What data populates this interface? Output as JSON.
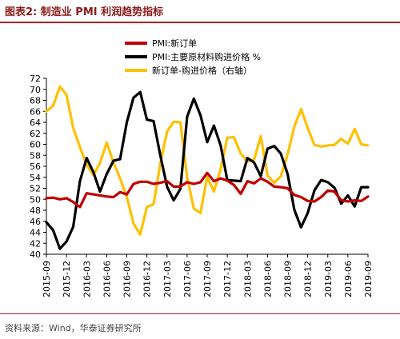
{
  "title": "图表2:  制造业 PMI 利润趋势指标",
  "source": "资料来源：Wind，华泰证券研究所",
  "chart_data": {
    "type": "line",
    "title": "",
    "xlabel": "",
    "ylabel": "",
    "ylim": [
      40,
      72
    ],
    "yticks": [
      40,
      42,
      44,
      46,
      48,
      50,
      52,
      54,
      56,
      58,
      60,
      62,
      64,
      66,
      68,
      70,
      72
    ],
    "x_tick_labels": [
      "2015-09",
      "2015-12",
      "2016-03",
      "2016-06",
      "2016-09",
      "2016-12",
      "2017-03",
      "2017-06",
      "2017-09",
      "2017-12",
      "2018-03",
      "2018-06",
      "2018-09",
      "2018-12",
      "2019-03",
      "2019-06",
      "2019-09"
    ],
    "x": [
      "2015-09",
      "2015-10",
      "2015-11",
      "2015-12",
      "2016-01",
      "2016-02",
      "2016-03",
      "2016-04",
      "2016-05",
      "2016-06",
      "2016-07",
      "2016-08",
      "2016-09",
      "2016-10",
      "2016-11",
      "2016-12",
      "2017-01",
      "2017-02",
      "2017-03",
      "2017-04",
      "2017-05",
      "2017-06",
      "2017-07",
      "2017-08",
      "2017-09",
      "2017-10",
      "2017-11",
      "2017-12",
      "2018-01",
      "2018-02",
      "2018-03",
      "2018-04",
      "2018-05",
      "2018-06",
      "2018-07",
      "2018-08",
      "2018-09",
      "2018-10",
      "2018-11",
      "2018-12",
      "2019-01",
      "2019-02",
      "2019-03",
      "2019-04",
      "2019-05",
      "2019-06",
      "2019-07",
      "2019-08",
      "2019-09"
    ],
    "legend_position": "top-left",
    "series": [
      {
        "name": "PMI:新订单",
        "color": "#c00000",
        "values": [
          50.2,
          50.3,
          50.0,
          50.2,
          49.5,
          48.6,
          51.1,
          50.9,
          50.7,
          50.5,
          50.4,
          51.3,
          50.9,
          52.8,
          53.2,
          53.2,
          52.8,
          53.0,
          53.3,
          52.3,
          52.3,
          53.1,
          52.8,
          53.1,
          54.8,
          53.3,
          53.8,
          53.4,
          52.6,
          51.0,
          53.3,
          52.9,
          53.8,
          53.2,
          52.3,
          52.2,
          52.0,
          50.8,
          50.4,
          49.7,
          49.6,
          50.4,
          51.6,
          51.4,
          49.8,
          49.6,
          49.8,
          49.7,
          50.5
        ]
      },
      {
        "name": "PMI:主要原材料购进价格 %",
        "color": "#000000",
        "values": [
          45.8,
          44.4,
          41.0,
          42.3,
          45.0,
          53.3,
          57.5,
          55.0,
          51.4,
          54.6,
          57.0,
          57.3,
          64.0,
          68.5,
          69.5,
          64.5,
          64.2,
          58.0,
          52.3,
          49.8,
          51.9,
          65.0,
          68.3,
          65.3,
          60.4,
          63.4,
          59.8,
          53.5,
          53.4,
          53.3,
          57.5,
          56.7,
          54.2,
          59.2,
          59.7,
          58.3,
          54.6,
          48.1,
          44.9,
          47.5,
          51.6,
          53.5,
          53.1,
          52.1,
          49.2,
          50.7,
          48.7,
          52.2,
          52.2
        ]
      },
      {
        "name": "新订单-购进价格（右轴）",
        "color": "#ffc000",
        "values": [
          66.0,
          67.0,
          70.5,
          69.0,
          63.0,
          59.5,
          56.3,
          54.4,
          56.6,
          60.3,
          56.7,
          53.8,
          50.4,
          45.6,
          43.6,
          48.6,
          49.1,
          56.5,
          62.3,
          64.1,
          64.0,
          54.0,
          48.3,
          47.5,
          54.1,
          51.4,
          55.5,
          61.2,
          61.3,
          58.3,
          56.9,
          57.2,
          61.5,
          54.3,
          53.0,
          54.2,
          58.2,
          63.2,
          66.4,
          63.0,
          59.9,
          59.6,
          59.8,
          59.9,
          61.0,
          60.1,
          62.8,
          60.0,
          59.8
        ]
      }
    ]
  }
}
